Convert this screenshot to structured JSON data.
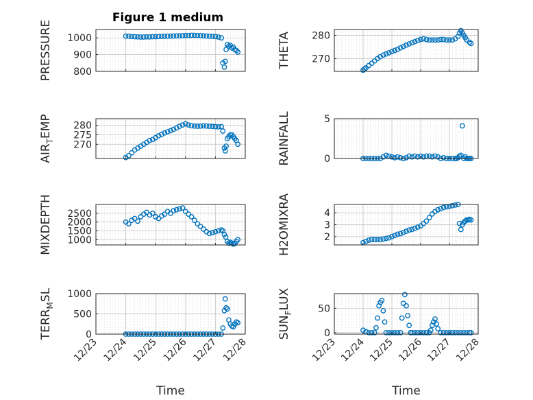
{
  "figure_title": "Figure 1 medium",
  "colors": {
    "marker": "#0072BD",
    "axes": "#262626",
    "grid": "#bfbfbf"
  },
  "chart_data": [
    {
      "id": "pressure",
      "type": "scatter",
      "title": "Figure 1 medium",
      "ylabel": "PRESSURE",
      "ylim": [
        800,
        1050
      ],
      "yticks": [
        800,
        900,
        1000
      ],
      "yticklabels": [
        "800",
        "900",
        "1000"
      ],
      "xlim": [
        0,
        5
      ],
      "grid": true,
      "minor_grid": true,
      "x": [
        1.0,
        1.1,
        1.2,
        1.3,
        1.4,
        1.5,
        1.6,
        1.7,
        1.8,
        1.9,
        2.0,
        2.1,
        2.2,
        2.3,
        2.4,
        2.5,
        2.6,
        2.7,
        2.8,
        2.9,
        3.0,
        3.1,
        3.2,
        3.3,
        3.4,
        3.5,
        3.6,
        3.7,
        3.8,
        3.9,
        4.0,
        4.1,
        4.2,
        4.25,
        4.3,
        4.33,
        4.36,
        4.4,
        4.45,
        4.5,
        4.55,
        4.6,
        4.65,
        4.7,
        4.75
      ],
      "y": [
        1010,
        1010,
        1008,
        1007,
        1006,
        1005,
        1005,
        1006,
        1006,
        1007,
        1007,
        1008,
        1009,
        1009,
        1010,
        1010,
        1011,
        1012,
        1012,
        1013,
        1014,
        1014,
        1015,
        1015,
        1014,
        1013,
        1012,
        1011,
        1010,
        1009,
        1008,
        1005,
        1000,
        850,
        825,
        860,
        930,
        960,
        950,
        955,
        940,
        945,
        930,
        925,
        915
      ]
    },
    {
      "id": "theta",
      "type": "scatter",
      "ylabel": "THETA",
      "ylim": [
        264.5,
        282.5
      ],
      "yticks": [
        270,
        280
      ],
      "yticklabels": [
        "270",
        "280"
      ],
      "xlim": [
        0,
        5
      ],
      "grid": true,
      "minor_grid": true,
      "x": [
        1.0,
        1.05,
        1.1,
        1.2,
        1.3,
        1.4,
        1.5,
        1.6,
        1.7,
        1.8,
        1.9,
        2.0,
        2.1,
        2.2,
        2.3,
        2.4,
        2.5,
        2.6,
        2.7,
        2.8,
        2.9,
        3.0,
        3.1,
        3.2,
        3.3,
        3.4,
        3.5,
        3.6,
        3.7,
        3.8,
        3.9,
        4.0,
        4.1,
        4.2,
        4.3,
        4.35,
        4.4,
        4.45,
        4.5,
        4.55,
        4.6,
        4.7,
        4.75
      ],
      "y": [
        265,
        265.5,
        266,
        267,
        268,
        269,
        270,
        270.8,
        271.5,
        272,
        272.5,
        273,
        273.5,
        274,
        274.6,
        275.2,
        275.8,
        276.3,
        276.8,
        277.3,
        277.8,
        278.2,
        278.5,
        278.2,
        278,
        278,
        278,
        278,
        278.2,
        278.2,
        278,
        278,
        278,
        278.5,
        279.5,
        281,
        282,
        281,
        280,
        279,
        278,
        277,
        276.5
      ]
    },
    {
      "id": "air_temp",
      "type": "scatter",
      "ylabel": "AIR_TEMP",
      "ylim": [
        262.5,
        283.5
      ],
      "yticks": [
        270,
        275,
        280
      ],
      "yticklabels": [
        "270",
        "275",
        "280"
      ],
      "xlim": [
        0,
        5
      ],
      "grid": true,
      "minor_grid": true,
      "x": [
        1.0,
        1.1,
        1.2,
        1.3,
        1.4,
        1.5,
        1.6,
        1.7,
        1.8,
        1.9,
        2.0,
        2.1,
        2.2,
        2.3,
        2.4,
        2.5,
        2.6,
        2.7,
        2.8,
        2.9,
        3.0,
        3.1,
        3.2,
        3.3,
        3.4,
        3.5,
        3.6,
        3.7,
        3.8,
        3.9,
        4.0,
        4.1,
        4.2,
        4.25,
        4.3,
        4.33,
        4.36,
        4.4,
        4.45,
        4.5,
        4.55,
        4.6,
        4.65,
        4.7,
        4.75
      ],
      "y": [
        263,
        264,
        265.5,
        267,
        268,
        269,
        270,
        271,
        272,
        272.5,
        273.5,
        274.5,
        275.2,
        276,
        276.6,
        277.2,
        277.9,
        278.6,
        279.5,
        280.2,
        280.8,
        280.2,
        279.8,
        279.6,
        279.5,
        279.6,
        279.7,
        279.6,
        279.5,
        279.4,
        279.3,
        279.2,
        279.3,
        277,
        268,
        266.5,
        269,
        273,
        274,
        275,
        275,
        274,
        273,
        272,
        270
      ]
    },
    {
      "id": "rainfall",
      "type": "scatter",
      "ylabel": "RAINFALL",
      "ylim": [
        0,
        5
      ],
      "yticks": [
        0,
        5
      ],
      "yticklabels": [
        "0",
        "5"
      ],
      "xlim": [
        0,
        5
      ],
      "grid": true,
      "minor_grid": true,
      "x": [
        1.0,
        1.1,
        1.2,
        1.3,
        1.4,
        1.5,
        1.6,
        1.7,
        1.8,
        1.9,
        2.0,
        2.1,
        2.2,
        2.3,
        2.4,
        2.5,
        2.6,
        2.7,
        2.8,
        2.9,
        3.0,
        3.1,
        3.2,
        3.3,
        3.4,
        3.5,
        3.6,
        3.7,
        3.8,
        3.9,
        4.0,
        4.1,
        4.2,
        4.25,
        4.3,
        4.35,
        4.4,
        4.45,
        4.5,
        4.55,
        4.6,
        4.65,
        4.7,
        4.75
      ],
      "y": [
        0,
        0,
        0,
        0,
        0,
        0,
        0,
        0.2,
        0.4,
        0.3,
        0.2,
        0.1,
        0.2,
        0.1,
        0,
        0.1,
        0.3,
        0.2,
        0.3,
        0.2,
        0.3,
        0.2,
        0.3,
        0.3,
        0.2,
        0.3,
        0.2,
        0,
        0.1,
        0,
        0,
        0,
        0,
        0,
        0.1,
        0.3,
        0.4,
        4.1,
        0,
        0.2,
        0,
        0,
        0,
        0
      ]
    },
    {
      "id": "mixdepth",
      "type": "scatter",
      "ylabel": "MIXDEPTH",
      "ylim": [
        700,
        3000
      ],
      "yticks": [
        1000,
        1500,
        2000,
        2500
      ],
      "yticklabels": [
        "1000",
        "1500",
        "2000",
        "2500"
      ],
      "xlim": [
        0,
        5
      ],
      "grid": true,
      "minor_grid": true,
      "x": [
        1.0,
        1.1,
        1.2,
        1.3,
        1.4,
        1.5,
        1.6,
        1.7,
        1.8,
        1.9,
        2.0,
        2.1,
        2.2,
        2.3,
        2.4,
        2.5,
        2.6,
        2.7,
        2.8,
        2.9,
        3.0,
        3.1,
        3.2,
        3.3,
        3.4,
        3.5,
        3.6,
        3.7,
        3.8,
        3.9,
        4.0,
        4.1,
        4.2,
        4.25,
        4.3,
        4.35,
        4.4,
        4.45,
        4.5,
        4.55,
        4.6,
        4.65,
        4.7,
        4.75
      ],
      "y": [
        2000,
        1900,
        2100,
        2200,
        2050,
        2300,
        2450,
        2550,
        2400,
        2500,
        2300,
        2200,
        2350,
        2450,
        2600,
        2500,
        2650,
        2700,
        2750,
        2800,
        2600,
        2450,
        2300,
        2100,
        1900,
        1750,
        1600,
        1450,
        1350,
        1400,
        1450,
        1500,
        1550,
        1500,
        1300,
        1150,
        900,
        800,
        850,
        800,
        750,
        780,
        900,
        1000
      ]
    },
    {
      "id": "h2omixra",
      "type": "scatter",
      "ylabel": "H2OMIXRA",
      "ylim": [
        1.3,
        4.7
      ],
      "yticks": [
        2,
        3,
        4
      ],
      "yticklabels": [
        "2",
        "3",
        "4"
      ],
      "xlim": [
        0,
        5
      ],
      "grid": true,
      "minor_grid": true,
      "x": [
        1.0,
        1.1,
        1.2,
        1.3,
        1.4,
        1.5,
        1.6,
        1.7,
        1.8,
        1.9,
        2.0,
        2.1,
        2.2,
        2.3,
        2.4,
        2.5,
        2.6,
        2.7,
        2.8,
        2.9,
        3.0,
        3.1,
        3.2,
        3.3,
        3.4,
        3.5,
        3.6,
        3.7,
        3.8,
        3.9,
        4.0,
        4.1,
        4.2,
        4.3,
        4.35,
        4.4,
        4.45,
        4.5,
        4.55,
        4.6,
        4.65,
        4.7,
        4.75
      ],
      "y": [
        1.5,
        1.6,
        1.7,
        1.75,
        1.75,
        1.75,
        1.75,
        1.8,
        1.85,
        1.9,
        2.0,
        2.1,
        2.2,
        2.25,
        2.35,
        2.45,
        2.55,
        2.6,
        2.7,
        2.8,
        2.9,
        3.1,
        3.3,
        3.6,
        3.9,
        4.1,
        4.25,
        4.35,
        4.45,
        4.5,
        4.55,
        4.6,
        4.65,
        4.7,
        3.1,
        2.6,
        3.0,
        3.2,
        3.3,
        3.4,
        3.4,
        3.45,
        3.4
      ]
    },
    {
      "id": "terr_msl",
      "type": "scatter",
      "ylabel": "TERR_MSL",
      "ylim": [
        0,
        1000
      ],
      "yticks": [
        0,
        500,
        1000
      ],
      "yticklabels": [
        "0",
        "500",
        "1000"
      ],
      "xlim": [
        0,
        5
      ],
      "xticks": [
        0,
        1,
        2,
        3,
        4,
        5
      ],
      "xticklabels": [
        "12/23",
        "12/24",
        "12/25",
        "12/26",
        "12/27",
        "12/28"
      ],
      "xlabel": "Time",
      "grid": true,
      "minor_grid": true,
      "x": [
        1.0,
        1.1,
        1.2,
        1.3,
        1.4,
        1.5,
        1.6,
        1.7,
        1.8,
        1.9,
        2.0,
        2.1,
        2.2,
        2.3,
        2.4,
        2.5,
        2.6,
        2.7,
        2.8,
        2.9,
        3.0,
        3.1,
        3.2,
        3.3,
        3.4,
        3.5,
        3.6,
        3.7,
        3.8,
        3.9,
        4.0,
        4.1,
        4.2,
        4.25,
        4.3,
        4.33,
        4.36,
        4.4,
        4.45,
        4.5,
        4.55,
        4.6,
        4.65,
        4.7,
        4.75
      ],
      "y": [
        0,
        0,
        0,
        0,
        0,
        0,
        0,
        0,
        0,
        0,
        0,
        0,
        0,
        0,
        0,
        0,
        0,
        0,
        0,
        0,
        0,
        0,
        0,
        0,
        0,
        0,
        0,
        0,
        0,
        0,
        0,
        0,
        0,
        150,
        580,
        870,
        650,
        620,
        350,
        250,
        200,
        180,
        250,
        300,
        280
      ]
    },
    {
      "id": "sun_flux",
      "type": "scatter",
      "ylabel": "SUN_FLUX",
      "ylim": [
        -3,
        80
      ],
      "yticks": [
        0,
        50
      ],
      "yticklabels": [
        "0",
        "50"
      ],
      "xlim": [
        0,
        5
      ],
      "xticks": [
        0,
        1,
        2,
        3,
        4,
        5
      ],
      "xticklabels": [
        "12/23",
        "12/24",
        "12/25",
        "12/26",
        "12/27",
        "12/28"
      ],
      "xlabel": "Time",
      "grid": true,
      "minor_grid": true,
      "x": [
        1.0,
        1.1,
        1.2,
        1.3,
        1.4,
        1.45,
        1.5,
        1.55,
        1.6,
        1.65,
        1.7,
        1.75,
        1.8,
        1.9,
        2.0,
        2.1,
        2.2,
        2.3,
        2.35,
        2.4,
        2.45,
        2.5,
        2.55,
        2.6,
        2.65,
        2.7,
        2.8,
        2.9,
        3.0,
        3.1,
        3.2,
        3.3,
        3.35,
        3.4,
        3.45,
        3.5,
        3.55,
        3.6,
        3.7,
        3.8,
        3.9,
        4.0,
        4.1,
        4.2,
        4.3,
        4.4,
        4.5,
        4.6,
        4.7,
        4.75
      ],
      "y": [
        5,
        2,
        0,
        0,
        0,
        10,
        30,
        55,
        62,
        66,
        45,
        22,
        0,
        0,
        0,
        0,
        0,
        0,
        30,
        60,
        78,
        55,
        35,
        15,
        0,
        0,
        0,
        0,
        0,
        0,
        0,
        0,
        5,
        15,
        22,
        28,
        18,
        8,
        0,
        0,
        0,
        0,
        0,
        0,
        0,
        0,
        0,
        0,
        0,
        0
      ]
    }
  ],
  "ylabel_display": [
    {
      "main": "PRESSURE",
      "sub": ""
    },
    {
      "main": "THETA",
      "sub": ""
    },
    {
      "pre": "AIR",
      "sub": "T",
      "post": "EMP"
    },
    {
      "main": "RAINFALL",
      "sub": ""
    },
    {
      "main": "MIXDEPTH",
      "sub": ""
    },
    {
      "main": "H2OMIXRA",
      "sub": ""
    },
    {
      "pre": "TERR",
      "sub": "M",
      "post": "SL"
    },
    {
      "pre": "SUN",
      "sub": "F",
      "post": "LUX"
    }
  ]
}
